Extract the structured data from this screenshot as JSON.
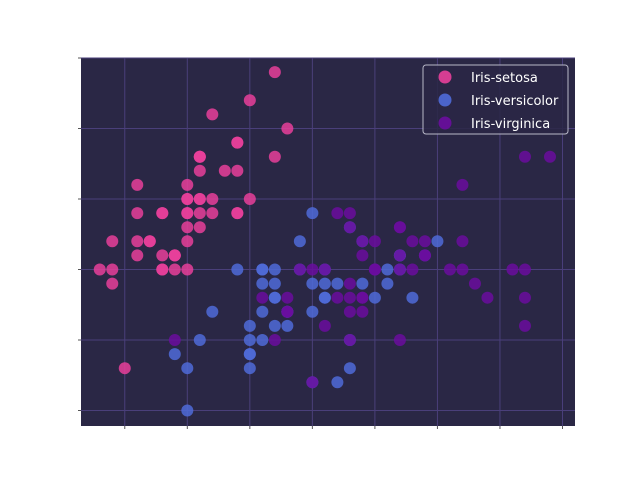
{
  "chart_data": {
    "type": "scatter",
    "title": "",
    "xlabel": "",
    "ylabel": "",
    "xlim": [
      4.15,
      8.1
    ],
    "ylim": [
      1.89,
      4.5
    ],
    "grid": true,
    "legend_position": "top-right",
    "background": "#2a2745",
    "grid_color": "#4a3f7a",
    "series": [
      {
        "name": "Iris-setosa",
        "color": "#e8409a",
        "x": [
          5.1,
          4.9,
          4.7,
          4.6,
          5.0,
          5.4,
          4.6,
          5.0,
          4.4,
          4.9,
          5.4,
          4.8,
          4.8,
          4.3,
          5.8,
          5.7,
          5.4,
          5.1,
          5.7,
          5.1,
          5.4,
          5.1,
          4.6,
          5.1,
          4.8,
          5.0,
          5.0,
          5.2,
          5.2,
          4.7,
          4.8,
          5.4,
          5.2,
          5.5,
          4.9,
          5.0,
          5.5,
          4.9,
          4.4,
          5.1,
          5.0,
          4.5,
          4.4,
          5.0,
          5.1,
          4.8,
          5.1,
          4.6,
          5.3,
          5.0
        ],
        "y": [
          3.5,
          3.0,
          3.2,
          3.1,
          3.6,
          3.9,
          3.4,
          3.4,
          2.9,
          3.1,
          3.7,
          3.4,
          3.0,
          3.0,
          4.0,
          4.4,
          3.9,
          3.5,
          3.8,
          3.8,
          3.4,
          3.7,
          3.6,
          3.3,
          3.4,
          3.0,
          3.4,
          3.5,
          3.4,
          3.2,
          3.1,
          3.4,
          4.1,
          4.2,
          3.1,
          3.2,
          3.5,
          3.1,
          3.0,
          3.4,
          3.5,
          2.3,
          3.2,
          3.5,
          3.8,
          3.0,
          3.8,
          3.2,
          3.7,
          3.3
        ]
      },
      {
        "name": "Iris-versicolor",
        "color": "#4f6bd8",
        "x": [
          7.0,
          6.4,
          6.9,
          5.5,
          6.5,
          5.7,
          6.3,
          4.9,
          6.6,
          5.2,
          5.0,
          5.9,
          6.0,
          6.1,
          5.6,
          6.7,
          5.6,
          5.8,
          6.2,
          5.6,
          5.9,
          6.1,
          6.3,
          6.1,
          6.4,
          6.6,
          6.8,
          6.7,
          6.0,
          5.7,
          5.5,
          5.5,
          5.8,
          6.0,
          5.4,
          6.0,
          6.7,
          6.3,
          5.6,
          5.5,
          5.5,
          6.1,
          5.8,
          5.0,
          5.6,
          5.7,
          5.7,
          6.2,
          5.1,
          5.7
        ],
        "y": [
          3.2,
          3.2,
          3.1,
          2.3,
          2.8,
          2.8,
          3.3,
          2.4,
          2.9,
          2.7,
          2.0,
          3.0,
          2.2,
          2.9,
          2.9,
          3.1,
          3.0,
          2.7,
          2.2,
          2.5,
          3.2,
          2.8,
          2.5,
          2.8,
          2.9,
          3.0,
          2.8,
          3.0,
          2.9,
          2.6,
          2.4,
          2.4,
          2.7,
          2.7,
          3.0,
          3.4,
          3.1,
          2.3,
          3.0,
          2.5,
          2.6,
          3.0,
          2.6,
          2.3,
          2.7,
          3.0,
          2.9,
          2.9,
          2.5,
          2.8
        ]
      },
      {
        "name": "Iris-virginica",
        "color": "#6a0d9e",
        "x": [
          6.3,
          5.8,
          7.1,
          6.3,
          6.5,
          7.6,
          4.9,
          7.3,
          6.7,
          7.2,
          6.5,
          6.4,
          6.8,
          5.7,
          5.8,
          6.4,
          6.5,
          7.7,
          7.7,
          6.0,
          6.9,
          5.6,
          7.7,
          6.3,
          6.7,
          7.2,
          6.2,
          6.1,
          6.4,
          7.2,
          7.4,
          7.9,
          6.4,
          6.3,
          6.1,
          7.7,
          6.3,
          6.4,
          6.0,
          6.9,
          6.7,
          6.9,
          5.8,
          6.8,
          6.7,
          6.7,
          6.3,
          6.5,
          6.2,
          5.9
        ],
        "y": [
          3.3,
          2.7,
          3.0,
          2.9,
          3.0,
          3.0,
          2.5,
          2.9,
          2.5,
          3.6,
          3.2,
          2.7,
          3.0,
          2.5,
          2.8,
          3.2,
          3.0,
          3.8,
          2.6,
          2.2,
          3.2,
          2.8,
          2.8,
          2.7,
          3.3,
          3.2,
          2.8,
          3.0,
          2.8,
          3.0,
          2.8,
          3.8,
          2.8,
          2.8,
          2.6,
          3.0,
          3.4,
          3.1,
          3.0,
          3.1,
          3.1,
          3.1,
          2.7,
          3.2,
          3.3,
          3.0,
          2.5,
          3.0,
          3.4,
          3.0
        ]
      }
    ]
  }
}
